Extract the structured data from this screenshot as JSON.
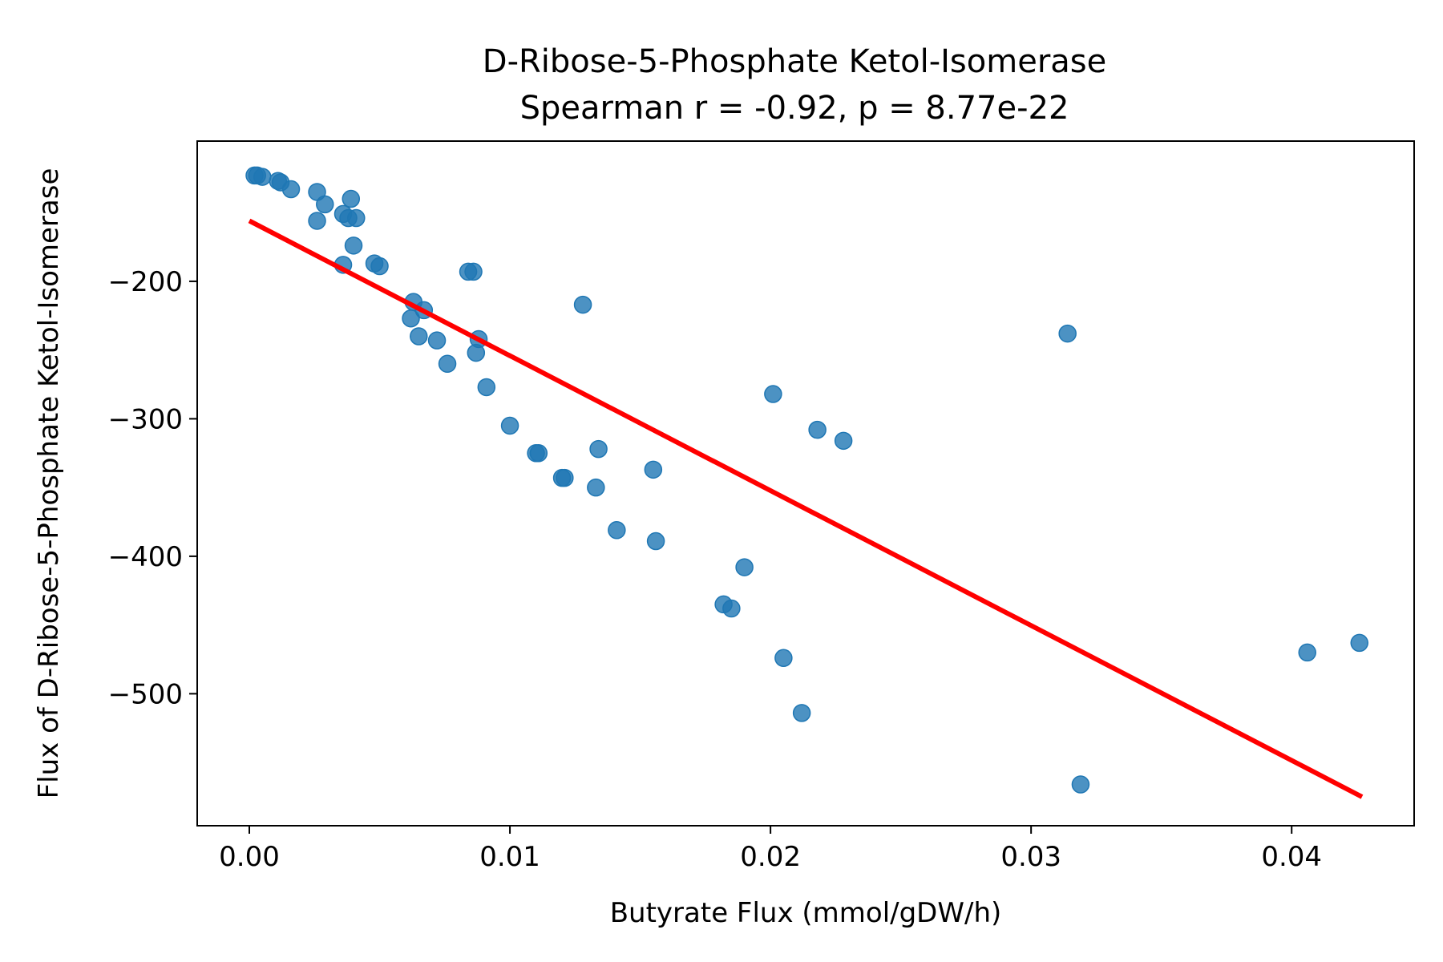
{
  "chart_data": {
    "type": "scatter",
    "title": "D-Ribose-5-Phosphate Ketol-Isomerase",
    "subtitle": "Spearman r = -0.92, p = 8.77e-22",
    "xlabel": "Butyrate Flux (mmol/gDW/h)",
    "ylabel": "Flux of D-Ribose-5-Phosphate Ketol-Isomerase",
    "xlim": [
      -0.002,
      0.0447
    ],
    "ylim": [
      -596,
      -98
    ],
    "x_ticks": [
      0.0,
      0.01,
      0.02,
      0.03,
      0.04
    ],
    "x_tick_labels": [
      "0.00",
      "0.01",
      "0.02",
      "0.03",
      "0.04"
    ],
    "y_ticks": [
      -200,
      -300,
      -400,
      -500
    ],
    "y_tick_labels": [
      "−200",
      "−300",
      "−400",
      "−500"
    ],
    "grid": false,
    "point_color": "#1f77b4",
    "line_color": "#ff0000",
    "points": [
      {
        "x": 0.0002,
        "y": -123
      },
      {
        "x": 0.0003,
        "y": -123
      },
      {
        "x": 0.0005,
        "y": -124
      },
      {
        "x": 0.0011,
        "y": -127
      },
      {
        "x": 0.0012,
        "y": -128
      },
      {
        "x": 0.0016,
        "y": -133
      },
      {
        "x": 0.0026,
        "y": -135
      },
      {
        "x": 0.0029,
        "y": -144
      },
      {
        "x": 0.0026,
        "y": -156
      },
      {
        "x": 0.0036,
        "y": -151
      },
      {
        "x": 0.0038,
        "y": -154
      },
      {
        "x": 0.0041,
        "y": -154
      },
      {
        "x": 0.0039,
        "y": -140
      },
      {
        "x": 0.004,
        "y": -174
      },
      {
        "x": 0.0036,
        "y": -188
      },
      {
        "x": 0.0048,
        "y": -187
      },
      {
        "x": 0.005,
        "y": -189
      },
      {
        "x": 0.0084,
        "y": -193
      },
      {
        "x": 0.0086,
        "y": -193
      },
      {
        "x": 0.0063,
        "y": -215
      },
      {
        "x": 0.0067,
        "y": -221
      },
      {
        "x": 0.0062,
        "y": -227
      },
      {
        "x": 0.0065,
        "y": -240
      },
      {
        "x": 0.0072,
        "y": -243
      },
      {
        "x": 0.0088,
        "y": -242
      },
      {
        "x": 0.0087,
        "y": -252
      },
      {
        "x": 0.0076,
        "y": -260
      },
      {
        "x": 0.0091,
        "y": -277
      },
      {
        "x": 0.0128,
        "y": -217
      },
      {
        "x": 0.01,
        "y": -305
      },
      {
        "x": 0.011,
        "y": -325
      },
      {
        "x": 0.0111,
        "y": -325
      },
      {
        "x": 0.012,
        "y": -343
      },
      {
        "x": 0.0121,
        "y": -343
      },
      {
        "x": 0.0134,
        "y": -322
      },
      {
        "x": 0.0133,
        "y": -350
      },
      {
        "x": 0.0155,
        "y": -337
      },
      {
        "x": 0.0141,
        "y": -381
      },
      {
        "x": 0.0156,
        "y": -389
      },
      {
        "x": 0.0201,
        "y": -282
      },
      {
        "x": 0.0218,
        "y": -308
      },
      {
        "x": 0.0228,
        "y": -316
      },
      {
        "x": 0.019,
        "y": -408
      },
      {
        "x": 0.0182,
        "y": -435
      },
      {
        "x": 0.0185,
        "y": -438
      },
      {
        "x": 0.0205,
        "y": -474
      },
      {
        "x": 0.0212,
        "y": -514
      },
      {
        "x": 0.0314,
        "y": -238
      },
      {
        "x": 0.0319,
        "y": -566
      },
      {
        "x": 0.0406,
        "y": -470
      },
      {
        "x": 0.0426,
        "y": -463
      }
    ],
    "fit_line": {
      "x": [
        0.0,
        0.0427
      ],
      "y": [
        -156,
        -575
      ]
    }
  }
}
